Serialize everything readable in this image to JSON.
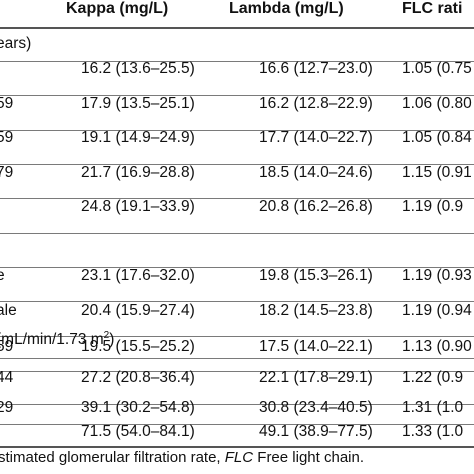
{
  "header": {
    "col0": "",
    "col1": "Kappa (mg/L)",
    "col2": "Lambda (mg/L)",
    "col3": "FLC rati"
  },
  "sections": {
    "age": "ears)",
    "sex": "",
    "egfr_prefix": "(mL/min/1.73 m",
    "egfr_sup": "2",
    "egfr_suffix": ")"
  },
  "rows": [
    {
      "label": "",
      "kappa": "16.2 (13.6–25.5)",
      "lambda": "16.6 (12.7–23.0)",
      "ratio": "1.05 (0.75"
    },
    {
      "label": "59",
      "kappa": "17.9 (13.5–25.1)",
      "lambda": "16.2 (12.8–22.9)",
      "ratio": "1.06 (0.80"
    },
    {
      "label": "59",
      "kappa": "19.1 (14.9–24.9)",
      "lambda": "17.7 (14.0–22.7)",
      "ratio": "1.05 (0.84"
    },
    {
      "label": "79",
      "kappa": "21.7 (16.9–28.8)",
      "lambda": "18.5 (14.0–24.6)",
      "ratio": "1.15 (0.91"
    },
    {
      "label": "",
      "kappa": "24.8 (19.1–33.9)",
      "lambda": "20.8 (16.2–26.8)",
      "ratio": "1.19 (0.9"
    },
    {
      "label": "e",
      "kappa": "23.1 (17.6–32.0)",
      "lambda": "19.8 (15.3–26.1)",
      "ratio": "1.19 (0.93"
    },
    {
      "label": "ale",
      "kappa": "20.4 (15.9–27.4)",
      "lambda": "18.2 (14.5–23.8)",
      "ratio": "1.19 (0.94"
    },
    {
      "label": "59",
      "kappa": "19.5 (15.5–25.2)",
      "lambda": "17.5 (14.0–22.1)",
      "ratio": "1.13 (0.90"
    },
    {
      "label": "44",
      "kappa": "27.2 (20.8–36.4)",
      "lambda": "22.1 (17.8–29.1)",
      "ratio": "1.22 (0.9"
    },
    {
      "label": "29",
      "kappa": "39.1 (30.2–54.8)",
      "lambda": "30.8 (23.4–40.5)",
      "ratio": "1.31 (1.0"
    },
    {
      "label": "",
      "kappa": "71.5 (54.0–84.1)",
      "lambda": "49.1 (38.9–77.5)",
      "ratio": "1.33 (1.0"
    }
  ],
  "footnote": {
    "part1": "stimated glomerular filtration rate, ",
    "flc": "FLC",
    "part2": " Free light chain."
  }
}
